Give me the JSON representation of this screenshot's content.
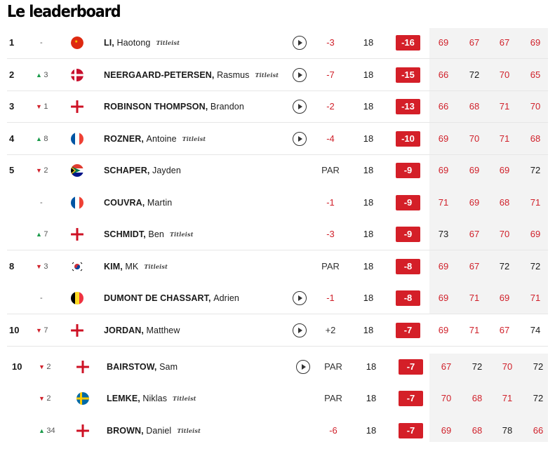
{
  "title": "Le leaderboard",
  "colors": {
    "accent_red": "#d41f28",
    "move_up": "#1a9a4a",
    "move_down": "#d0202a"
  },
  "rows": [
    {
      "pos": "1",
      "move": "-",
      "dir": "none",
      "flag": "china-flag-icon",
      "last": "LI,",
      "first": "Haotong",
      "brand": "Titleist",
      "play": true,
      "today": "-3",
      "thru": "18",
      "total": "-16",
      "r": [
        "69",
        "67",
        "67",
        "69"
      ]
    },
    {
      "pos": "2",
      "move": "3",
      "dir": "up",
      "flag": "denmark-flag-icon",
      "last": "NEERGAARD-PETERSEN,",
      "first": "Rasmus",
      "brand": "Titleist",
      "play": true,
      "today": "-7",
      "thru": "18",
      "total": "-15",
      "r": [
        "66",
        "72",
        "70",
        "65"
      ]
    },
    {
      "pos": "3",
      "move": "1",
      "dir": "down",
      "flag": "england-flag-icon",
      "last": "ROBINSON THOMPSON,",
      "first": "Brandon",
      "brand": "",
      "play": true,
      "today": "-2",
      "thru": "18",
      "total": "-13",
      "r": [
        "66",
        "68",
        "71",
        "70"
      ]
    },
    {
      "pos": "4",
      "move": "8",
      "dir": "up",
      "flag": "france-flag-icon",
      "last": "ROZNER,",
      "first": "Antoine",
      "brand": "Titleist",
      "play": true,
      "today": "-4",
      "thru": "18",
      "total": "-10",
      "r": [
        "69",
        "70",
        "71",
        "68"
      ]
    },
    {
      "pos": "5",
      "move": "2",
      "dir": "down",
      "flag": "south-africa-flag-icon",
      "last": "SCHAPER,",
      "first": "Jayden",
      "brand": "",
      "play": false,
      "today": "PAR",
      "thru": "18",
      "total": "-9",
      "r": [
        "69",
        "69",
        "69",
        "72"
      ]
    },
    {
      "pos": "",
      "move": "-",
      "dir": "none",
      "flag": "france-flag-icon",
      "last": "COUVRA,",
      "first": "Martin",
      "brand": "",
      "play": false,
      "today": "-1",
      "thru": "18",
      "total": "-9",
      "r": [
        "71",
        "69",
        "68",
        "71"
      ]
    },
    {
      "pos": "",
      "move": "7",
      "dir": "up",
      "flag": "england-flag-icon",
      "last": "SCHMIDT,",
      "first": "Ben",
      "brand": "Titleist",
      "play": false,
      "today": "-3",
      "thru": "18",
      "total": "-9",
      "r": [
        "73",
        "67",
        "70",
        "69"
      ]
    },
    {
      "pos": "8",
      "move": "3",
      "dir": "down",
      "flag": "south-korea-flag-icon",
      "last": "KIM,",
      "first": "MK",
      "brand": "Titleist",
      "play": false,
      "today": "PAR",
      "thru": "18",
      "total": "-8",
      "r": [
        "69",
        "67",
        "72",
        "72"
      ]
    },
    {
      "pos": "",
      "move": "-",
      "dir": "none",
      "flag": "belgium-flag-icon",
      "last": "DUMONT DE CHASSART,",
      "first": "Adrien",
      "brand": "",
      "play": true,
      "today": "-1",
      "thru": "18",
      "total": "-8",
      "r": [
        "69",
        "71",
        "69",
        "71"
      ]
    },
    {
      "pos": "10",
      "move": "7",
      "dir": "down",
      "flag": "england-flag-icon",
      "last": "JORDAN,",
      "first": "Matthew",
      "brand": "",
      "play": true,
      "today": "+2",
      "thru": "18",
      "total": "-7",
      "r": [
        "69",
        "71",
        "67",
        "74"
      ]
    },
    {
      "pos": "10",
      "move": "2",
      "dir": "down",
      "flag": "england-flag-icon",
      "last": "BAIRSTOW,",
      "first": "Sam",
      "brand": "",
      "play": true,
      "today": "PAR",
      "thru": "18",
      "total": "-7",
      "r": [
        "67",
        "72",
        "70",
        "72"
      ]
    },
    {
      "pos": "",
      "move": "2",
      "dir": "down",
      "flag": "sweden-flag-icon",
      "last": "LEMKE,",
      "first": "Niklas",
      "brand": "Titleist",
      "play": false,
      "today": "PAR",
      "thru": "18",
      "total": "-7",
      "r": [
        "70",
        "68",
        "71",
        "72"
      ]
    },
    {
      "pos": "",
      "move": "34",
      "dir": "up",
      "flag": "england-flag-icon",
      "last": "BROWN,",
      "first": "Daniel",
      "brand": "Titleist",
      "play": false,
      "today": "-6",
      "thru": "18",
      "total": "-7",
      "r": [
        "69",
        "68",
        "78",
        "66"
      ]
    }
  ]
}
